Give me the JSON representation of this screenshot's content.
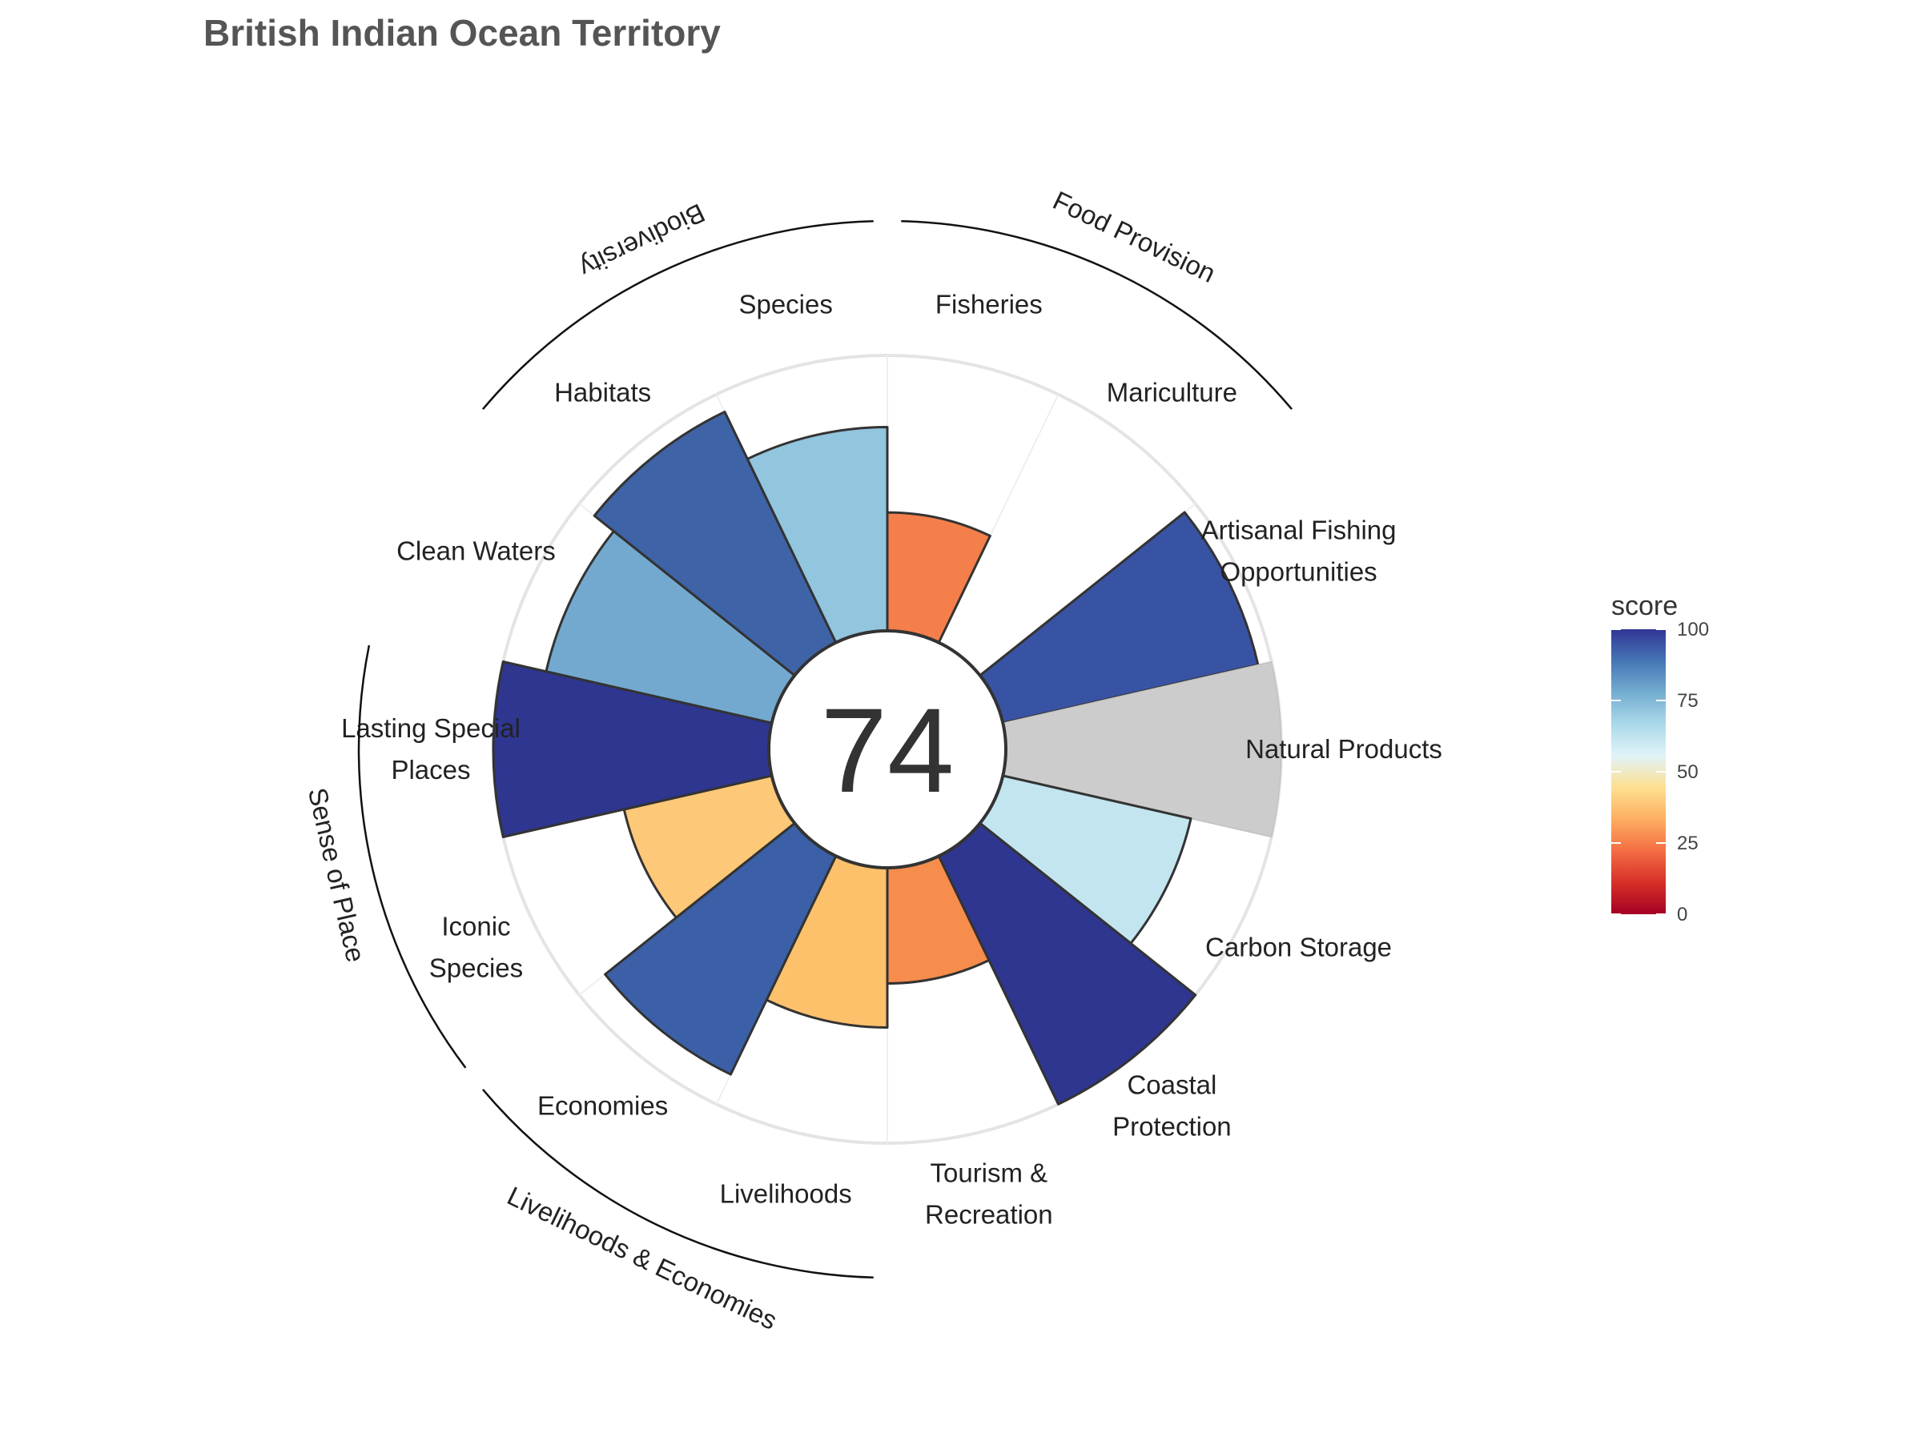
{
  "chart_data": {
    "type": "polar-bar",
    "title": "British Indian Ocean Territory",
    "overall_score": "74",
    "score_range": [
      0,
      100
    ],
    "goals": [
      {
        "label": [
          "Fisheries"
        ],
        "score": 43,
        "color": "#F47F4A"
      },
      {
        "label": [
          "Mariculture"
        ],
        "score": 0,
        "color": "#FFFFFF"
      },
      {
        "label": [
          "Artisanal Fishing",
          "Opportunities"
        ],
        "score": 95,
        "color": "#3953A4"
      },
      {
        "label": [
          "Natural Products"
        ],
        "score": null,
        "color": "#CCCCCC"
      },
      {
        "label": [
          "Carbon Storage"
        ],
        "score": 70,
        "color": "#C2E5F0"
      },
      {
        "label": [
          "Coastal",
          "Protection"
        ],
        "score": 100,
        "color": "#2E3690"
      },
      {
        "label": [
          "Tourism &",
          "Recreation"
        ],
        "score": 42,
        "color": "#F68D4D"
      },
      {
        "label": [
          "Livelihoods"
        ],
        "score": 58,
        "color": "#FDC16C"
      },
      {
        "label": [
          "Economies"
        ],
        "score": 88,
        "color": "#3B60A8"
      },
      {
        "label": [
          "Iconic",
          "Species"
        ],
        "score": 55,
        "color": "#FDC877"
      },
      {
        "label": [
          "Lasting Special",
          "Places"
        ],
        "score": 100,
        "color": "#2E3690"
      },
      {
        "label": [
          "Clean Waters"
        ],
        "score": 84,
        "color": "#74A9CF"
      },
      {
        "label": [
          "Habitats"
        ],
        "score": 93,
        "color": "#3F63A7"
      },
      {
        "label": [
          "Species"
        ],
        "score": 74,
        "color": "#92C5DE"
      }
    ],
    "groups": [
      {
        "name": "Food Provision"
      },
      {
        "name": "Biodiversity"
      },
      {
        "name": "Sense of Place"
      },
      {
        "name": "Livelihoods & Economies"
      }
    ],
    "legend": {
      "title": "score",
      "ticks": [
        "100",
        "75",
        "50",
        "25",
        "0"
      ],
      "colors": [
        "#A50026",
        "#D73027",
        "#F46D43",
        "#FDAE61",
        "#FEE090",
        "#E0F3F8",
        "#ABD9E9",
        "#74ADD1",
        "#4575B4",
        "#313695"
      ]
    }
  }
}
